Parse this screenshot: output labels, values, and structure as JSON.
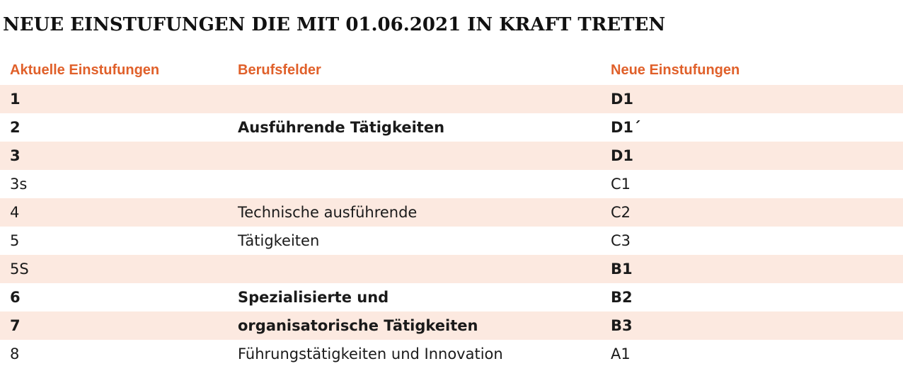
{
  "title": "NEUE EINSTUFUNGEN DIE MIT 01.06.2021 IN KRAFT TRETEN",
  "table": {
    "headers": [
      "Aktuelle Einstufungen",
      "Berufsfelder",
      "Neue Einstufungen"
    ],
    "rows": [
      {
        "aktuell": "1",
        "berufsfeld": "",
        "neu": "D1",
        "bold_aktuell": true,
        "bold_berufsfeld": true,
        "bold_neu": true,
        "shaded": true
      },
      {
        "aktuell": "2",
        "berufsfeld": "Ausführende Tätigkeiten",
        "neu": "D1´",
        "bold_aktuell": true,
        "bold_berufsfeld": true,
        "bold_neu": true,
        "shaded": false
      },
      {
        "aktuell": "3",
        "berufsfeld": "",
        "neu": "D1",
        "bold_aktuell": true,
        "bold_berufsfeld": true,
        "bold_neu": true,
        "shaded": true
      },
      {
        "aktuell": "3s",
        "berufsfeld": "",
        "neu": "C1",
        "bold_aktuell": false,
        "bold_berufsfeld": false,
        "bold_neu": false,
        "shaded": false
      },
      {
        "aktuell": "4",
        "berufsfeld": "Technische ausführende",
        "neu": "C2",
        "bold_aktuell": false,
        "bold_berufsfeld": false,
        "bold_neu": false,
        "shaded": true
      },
      {
        "aktuell": "5",
        "berufsfeld": "Tätigkeiten",
        "neu": "C3",
        "bold_aktuell": false,
        "bold_berufsfeld": false,
        "bold_neu": false,
        "shaded": false
      },
      {
        "aktuell": "5S",
        "berufsfeld": "",
        "neu": "B1",
        "bold_aktuell": false,
        "bold_berufsfeld": true,
        "bold_neu": true,
        "shaded": true
      },
      {
        "aktuell": "6",
        "berufsfeld": "Spezialisierte und",
        "neu": "B2",
        "bold_aktuell": true,
        "bold_berufsfeld": true,
        "bold_neu": true,
        "shaded": false
      },
      {
        "aktuell": "7",
        "berufsfeld": "organisatorische Tätigkeiten",
        "neu": "B3",
        "bold_aktuell": true,
        "bold_berufsfeld": true,
        "bold_neu": true,
        "shaded": true
      },
      {
        "aktuell": "8",
        "berufsfeld": "Führungstätigkeiten und Innovation",
        "neu": "A1",
        "bold_aktuell": false,
        "bold_berufsfeld": false,
        "bold_neu": false,
        "shaded": false
      }
    ]
  },
  "colors": {
    "header_text": "#e0602a",
    "row_shade": "#fce9e0",
    "title_text": "#111111"
  }
}
